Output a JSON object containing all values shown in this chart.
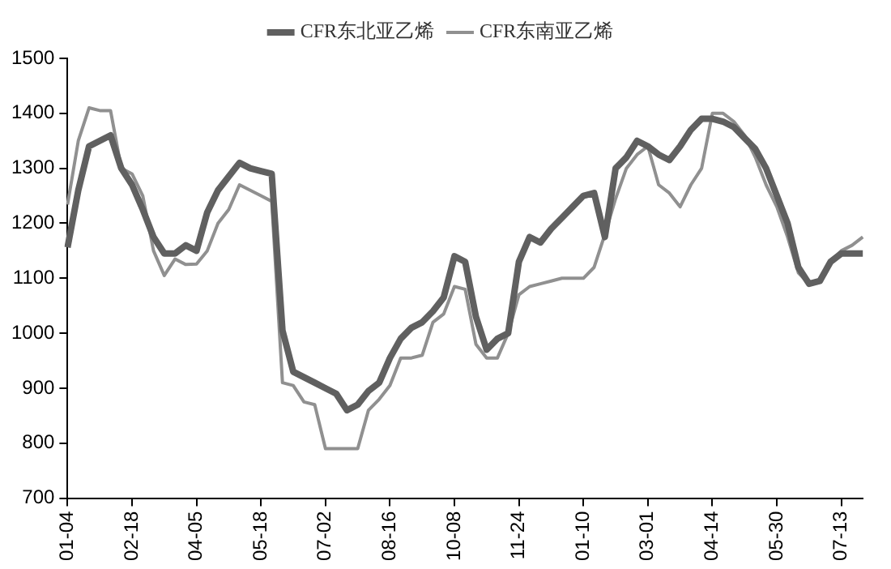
{
  "chart_data": {
    "type": "line",
    "categories": [
      "01-04",
      null,
      null,
      null,
      null,
      null,
      "02-18",
      null,
      null,
      null,
      null,
      null,
      "04-05",
      null,
      null,
      null,
      null,
      null,
      "05-18",
      null,
      null,
      null,
      null,
      null,
      "07-02",
      null,
      null,
      null,
      null,
      null,
      "08-16",
      null,
      null,
      null,
      null,
      null,
      "10-08",
      null,
      null,
      null,
      null,
      null,
      "11-24",
      null,
      null,
      null,
      null,
      null,
      "01-10",
      null,
      null,
      null,
      null,
      null,
      "03-01",
      null,
      null,
      null,
      null,
      null,
      "04-14",
      null,
      null,
      null,
      null,
      null,
      "05-30",
      null,
      null,
      null,
      null,
      null,
      "07-13",
      null,
      null
    ],
    "series": [
      {
        "name": "CFR东北亚乙烯",
        "color": "#606060",
        "values": [
          1156,
          1260,
          1340,
          1350,
          1360,
          1300,
          1270,
          1225,
          1175,
          1145,
          1145,
          1160,
          1150,
          1220,
          1260,
          1285,
          1310,
          1300,
          1295,
          1290,
          1005,
          930,
          920,
          910,
          900,
          890,
          860,
          870,
          895,
          910,
          955,
          990,
          1010,
          1020,
          1040,
          1065,
          1140,
          1130,
          1030,
          970,
          990,
          1000,
          1130,
          1175,
          1165,
          1190,
          1210,
          1230,
          1250,
          1255,
          1175,
          1300,
          1320,
          1350,
          1340,
          1325,
          1315,
          1340,
          1370,
          1390,
          1390,
          1385,
          1375,
          1355,
          1335,
          1300,
          1250,
          1200,
          1120,
          1090,
          1095,
          1130,
          1145,
          1145,
          1145
        ]
      },
      {
        "name": "CFR东南亚乙烯",
        "color": "#909090",
        "values": [
          1234,
          1350,
          1410,
          1405,
          1405,
          1300,
          1290,
          1250,
          1150,
          1105,
          1135,
          1125,
          1126,
          1150,
          1200,
          1225,
          1270,
          1260,
          1250,
          1240,
          910,
          905,
          875,
          870,
          790,
          790,
          790,
          790,
          860,
          880,
          905,
          955,
          955,
          960,
          1020,
          1035,
          1085,
          1080,
          980,
          955,
          955,
          1000,
          1070,
          1085,
          1090,
          1095,
          1100,
          1100,
          1100,
          1120,
          1180,
          1245,
          1300,
          1325,
          1340,
          1270,
          1255,
          1230,
          1270,
          1300,
          1400,
          1400,
          1385,
          1360,
          1320,
          1270,
          1230,
          1175,
          1110,
          1090,
          1095,
          1130,
          1150,
          1160,
          1175
        ]
      }
    ],
    "ylim": [
      700,
      1500
    ],
    "yticks": [
      700,
      800,
      900,
      1000,
      1100,
      1200,
      1300,
      1400,
      1500
    ],
    "legend": "top",
    "marker": "none",
    "line_style": "solid",
    "grid": false
  }
}
